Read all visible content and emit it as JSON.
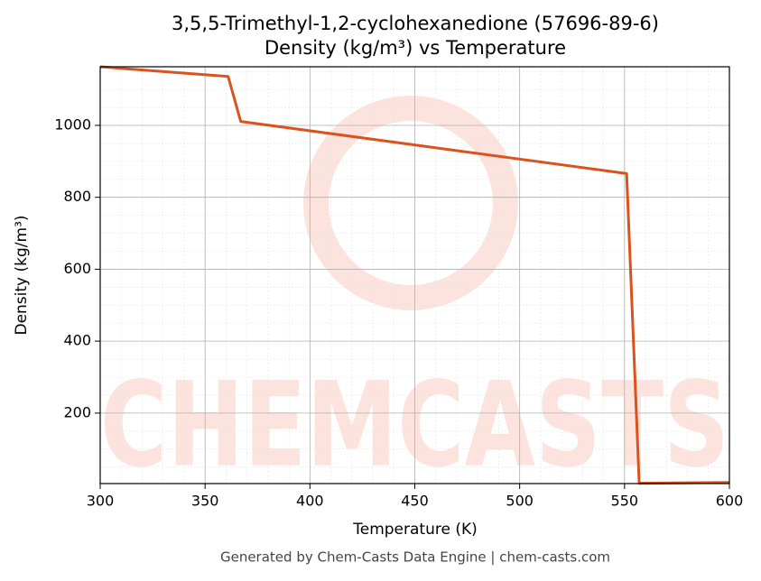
{
  "chart_data": {
    "type": "line",
    "title": "3,5,5-Trimethyl-1,2-cyclohexanedione (57696-89-6)",
    "subtitle": "Density (kg/m³) vs Temperature",
    "x_label": "Temperature (K)",
    "y_label": "Density (kg/m³)",
    "x": [
      300,
      361,
      367,
      551,
      557,
      600
    ],
    "series": [
      {
        "name": "Density",
        "color": "#d9531e",
        "values": [
          1163,
          1136,
          1011,
          866,
          5,
          7
        ]
      }
    ],
    "xlim": [
      300,
      600
    ],
    "xticks": [
      300,
      350,
      400,
      450,
      500,
      550,
      600
    ],
    "ylim": [
      4,
      1163
    ],
    "yticks": [
      200,
      400,
      600,
      800,
      1000
    ],
    "grid": true,
    "minor_grid": true,
    "watermark": "CHEMCASTS",
    "footer": "Generated by Chem-Casts Data Engine | chem-casts.com"
  }
}
